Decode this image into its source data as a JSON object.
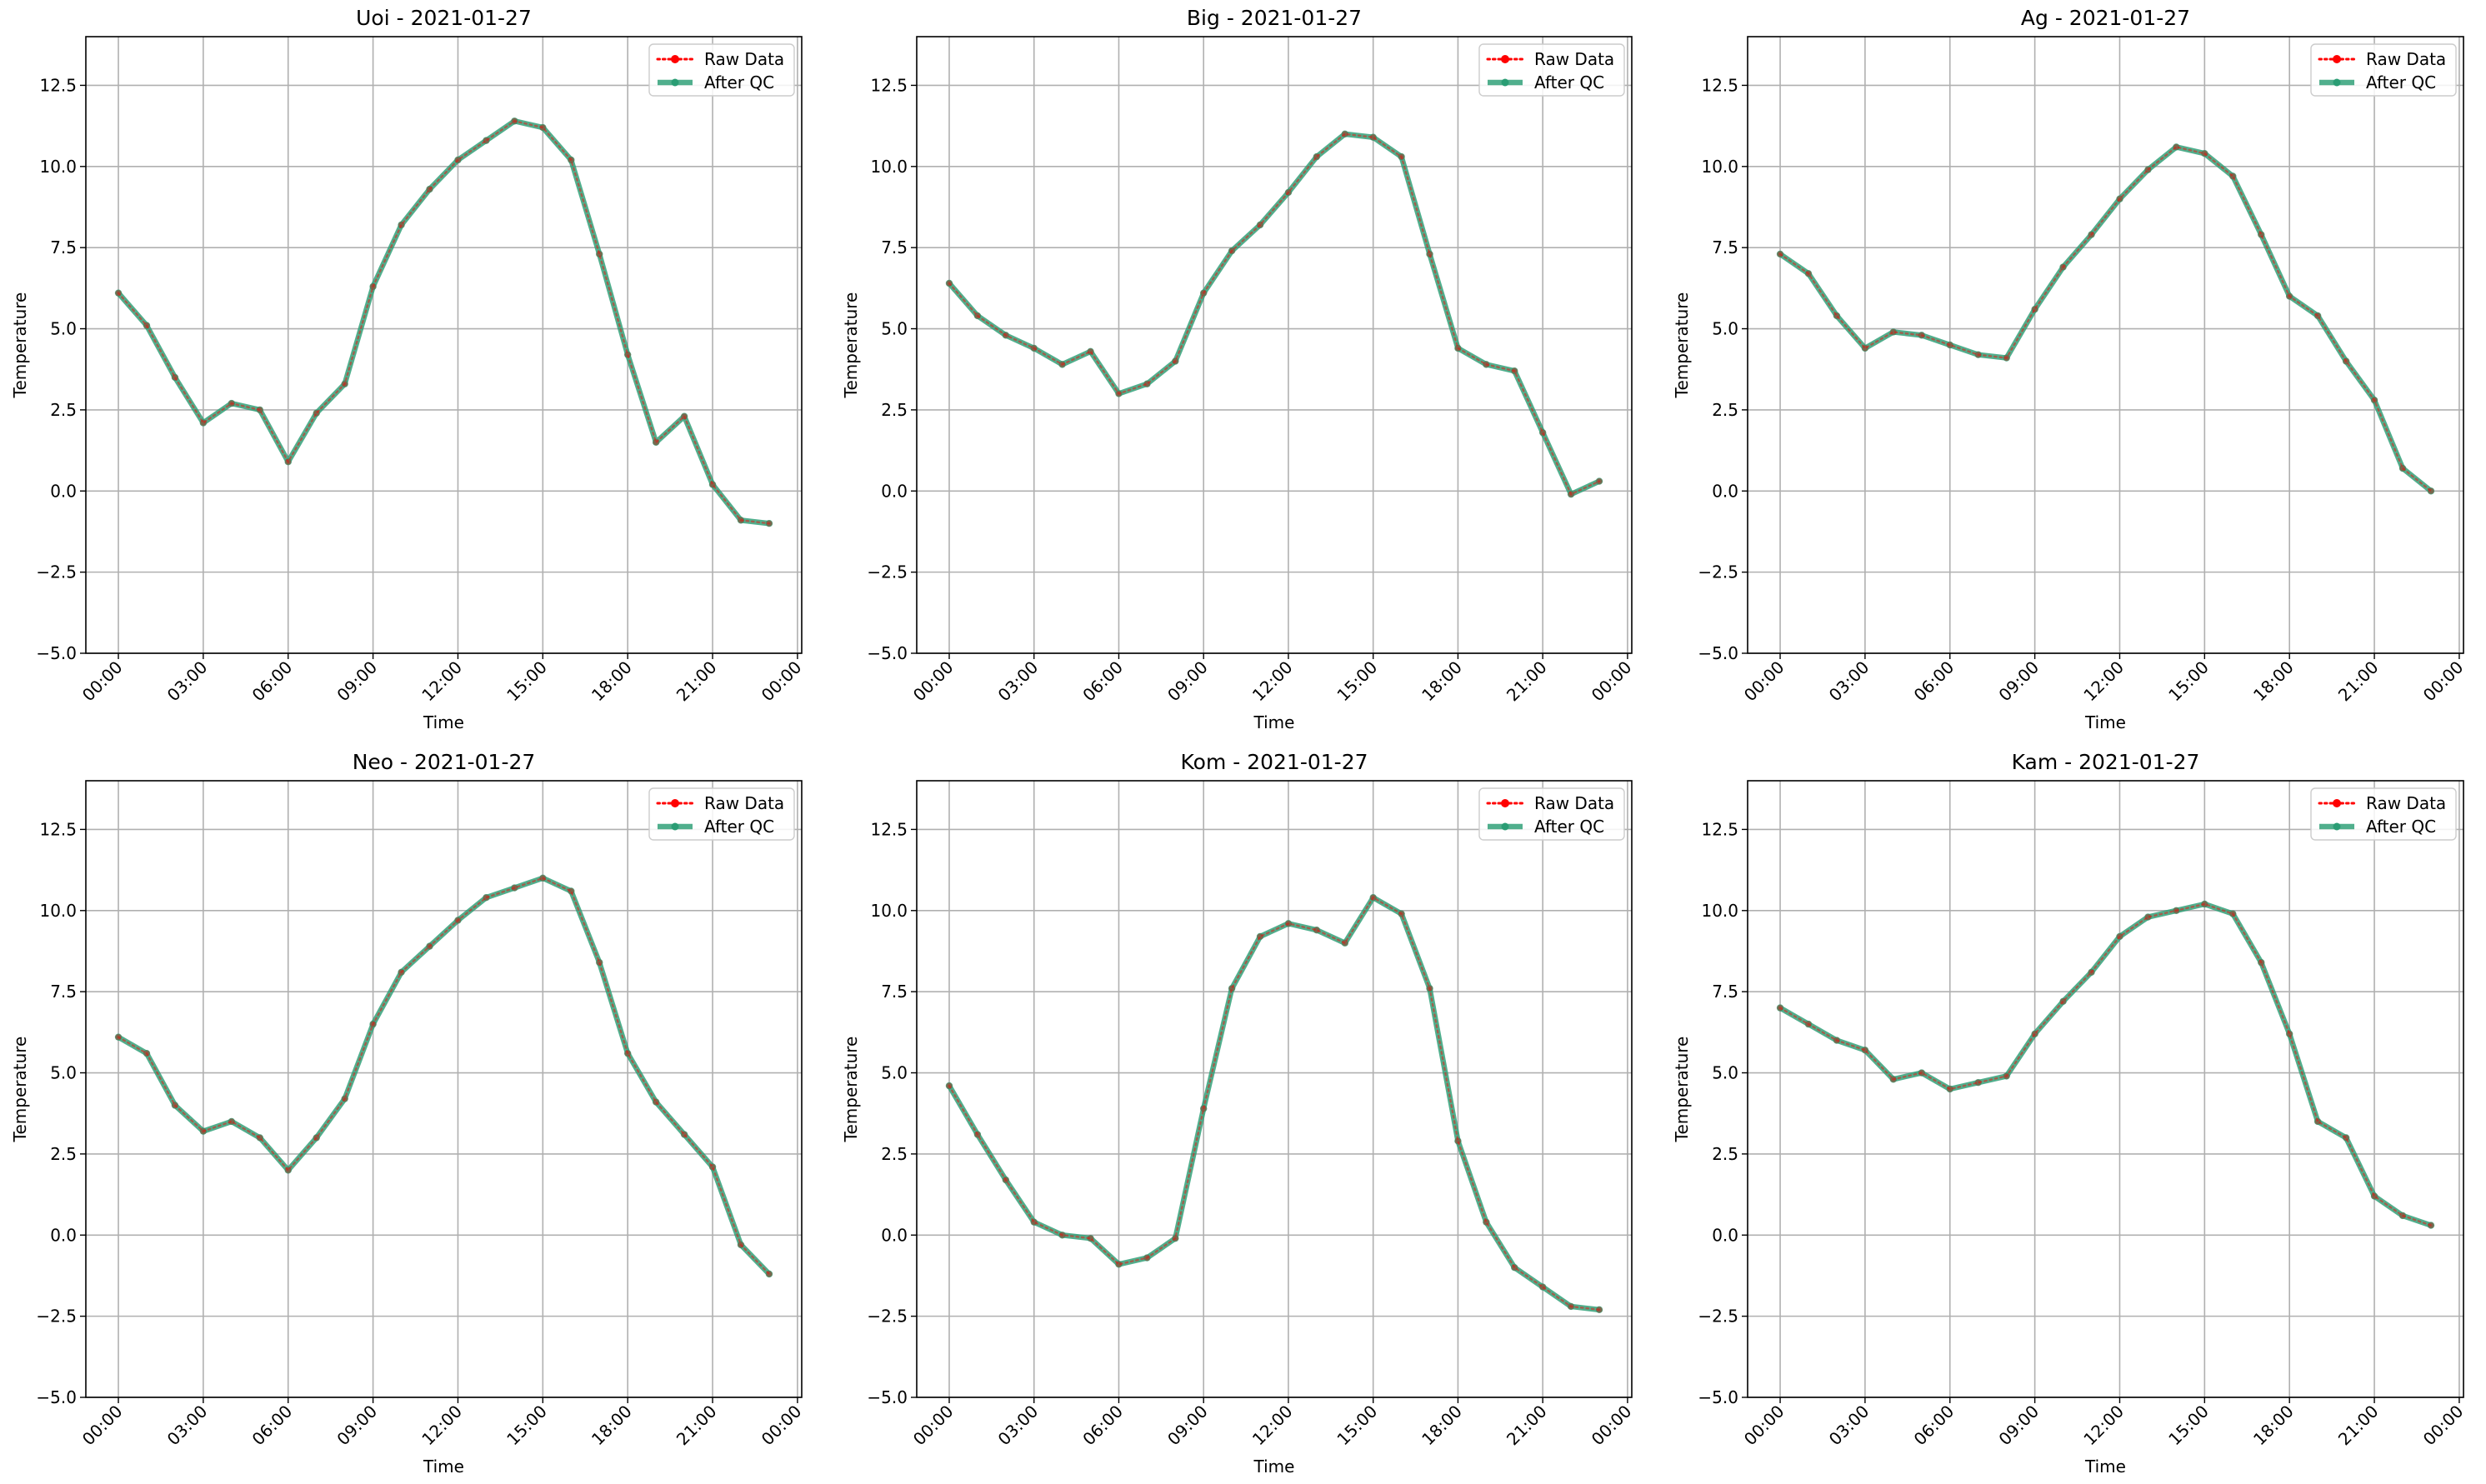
{
  "chart_data": [
    {
      "type": "line",
      "title": "Uoi - 2021-01-27",
      "xlabel": "Time",
      "ylabel": "Temperature",
      "xlim": [
        -1.15,
        24.15
      ],
      "ylim": [
        -5.0,
        14.0
      ],
      "yticks": [
        "−5.0",
        "−2.5",
        "0.0",
        "2.5",
        "5.0",
        "7.5",
        "10.0",
        "12.5"
      ],
      "xticks": [
        "00:00",
        "03:00",
        "06:00",
        "09:00",
        "12:00",
        "15:00",
        "18:00",
        "21:00",
        "00:00"
      ],
      "grid": true,
      "legend_position": "top-right",
      "x": [
        "00:00",
        "01:00",
        "02:00",
        "03:00",
        "04:00",
        "05:00",
        "06:00",
        "07:00",
        "08:00",
        "09:00",
        "10:00",
        "11:00",
        "12:00",
        "13:00",
        "14:00",
        "15:00",
        "16:00",
        "17:00",
        "18:00",
        "19:00",
        "20:00",
        "21:00",
        "22:00",
        "23:00"
      ],
      "series": [
        {
          "name": "Raw Data",
          "color": "#ff0000",
          "values": [
            6.1,
            5.1,
            3.5,
            2.1,
            2.7,
            2.5,
            0.9,
            2.4,
            3.3,
            6.3,
            8.2,
            9.3,
            10.2,
            10.8,
            11.4,
            11.2,
            10.2,
            7.3,
            4.2,
            1.5,
            2.3,
            0.2,
            -0.9,
            -1.0
          ]
        },
        {
          "name": "After QC",
          "color": "#2a9d74",
          "values": [
            6.1,
            5.1,
            3.5,
            2.1,
            2.7,
            2.5,
            0.9,
            2.4,
            3.3,
            6.3,
            8.2,
            9.3,
            10.2,
            10.8,
            11.4,
            11.2,
            10.2,
            7.3,
            4.2,
            1.5,
            2.3,
            0.2,
            -0.9,
            -1.0
          ]
        }
      ]
    },
    {
      "type": "line",
      "title": "Big - 2021-01-27",
      "xlabel": "Time",
      "ylabel": "Temperature",
      "xlim": [
        -1.15,
        24.15
      ],
      "ylim": [
        -5.0,
        14.0
      ],
      "yticks": [
        "−5.0",
        "−2.5",
        "0.0",
        "2.5",
        "5.0",
        "7.5",
        "10.0",
        "12.5"
      ],
      "xticks": [
        "00:00",
        "03:00",
        "06:00",
        "09:00",
        "12:00",
        "15:00",
        "18:00",
        "21:00",
        "00:00"
      ],
      "grid": true,
      "legend_position": "top-right",
      "x": [
        "00:00",
        "01:00",
        "02:00",
        "03:00",
        "04:00",
        "05:00",
        "06:00",
        "07:00",
        "08:00",
        "09:00",
        "10:00",
        "11:00",
        "12:00",
        "13:00",
        "14:00",
        "15:00",
        "16:00",
        "17:00",
        "18:00",
        "19:00",
        "20:00",
        "21:00",
        "22:00",
        "23:00"
      ],
      "series": [
        {
          "name": "Raw Data",
          "color": "#ff0000",
          "values": [
            6.4,
            5.4,
            4.8,
            4.4,
            3.9,
            4.3,
            3.0,
            3.3,
            4.0,
            6.1,
            7.4,
            8.2,
            9.2,
            10.3,
            11.0,
            10.9,
            10.3,
            7.3,
            4.4,
            3.9,
            3.7,
            1.8,
            -0.1,
            0.3
          ]
        },
        {
          "name": "After QC",
          "color": "#2a9d74",
          "values": [
            6.4,
            5.4,
            4.8,
            4.4,
            3.9,
            4.3,
            3.0,
            3.3,
            4.0,
            6.1,
            7.4,
            8.2,
            9.2,
            10.3,
            11.0,
            10.9,
            10.3,
            7.3,
            4.4,
            3.9,
            3.7,
            1.8,
            -0.1,
            0.3
          ]
        }
      ]
    },
    {
      "type": "line",
      "title": "Ag - 2021-01-27",
      "xlabel": "Time",
      "ylabel": "Temperature",
      "xlim": [
        -1.15,
        24.15
      ],
      "ylim": [
        -5.0,
        14.0
      ],
      "yticks": [
        "−5.0",
        "−2.5",
        "0.0",
        "2.5",
        "5.0",
        "7.5",
        "10.0",
        "12.5"
      ],
      "xticks": [
        "00:00",
        "03:00",
        "06:00",
        "09:00",
        "12:00",
        "15:00",
        "18:00",
        "21:00",
        "00:00"
      ],
      "grid": true,
      "legend_position": "top-right",
      "x": [
        "00:00",
        "01:00",
        "02:00",
        "03:00",
        "04:00",
        "05:00",
        "06:00",
        "07:00",
        "08:00",
        "09:00",
        "10:00",
        "11:00",
        "12:00",
        "13:00",
        "14:00",
        "15:00",
        "16:00",
        "17:00",
        "18:00",
        "19:00",
        "20:00",
        "21:00",
        "22:00",
        "23:00"
      ],
      "series": [
        {
          "name": "Raw Data",
          "color": "#ff0000",
          "values": [
            7.3,
            6.7,
            5.4,
            4.4,
            4.9,
            4.8,
            4.5,
            4.2,
            4.1,
            5.6,
            6.9,
            7.9,
            9.0,
            9.9,
            10.6,
            10.4,
            9.7,
            7.9,
            6.0,
            5.4,
            4.0,
            2.8,
            0.7,
            -0.0
          ]
        },
        {
          "name": "After QC",
          "color": "#2a9d74",
          "values": [
            7.3,
            6.7,
            5.4,
            4.4,
            4.9,
            4.8,
            4.5,
            4.2,
            4.1,
            5.6,
            6.9,
            7.9,
            9.0,
            9.9,
            10.6,
            10.4,
            9.7,
            7.9,
            6.0,
            5.4,
            4.0,
            2.8,
            0.7,
            -0.0
          ]
        }
      ]
    },
    {
      "type": "line",
      "title": "Neo - 2021-01-27",
      "xlabel": "Time",
      "ylabel": "Temperature",
      "xlim": [
        -1.15,
        24.15
      ],
      "ylim": [
        -5.0,
        14.0
      ],
      "yticks": [
        "−5.0",
        "−2.5",
        "0.0",
        "2.5",
        "5.0",
        "7.5",
        "10.0",
        "12.5"
      ],
      "xticks": [
        "00:00",
        "03:00",
        "06:00",
        "09:00",
        "12:00",
        "15:00",
        "18:00",
        "21:00",
        "00:00"
      ],
      "grid": true,
      "legend_position": "top-right",
      "x": [
        "00:00",
        "01:00",
        "02:00",
        "03:00",
        "04:00",
        "05:00",
        "06:00",
        "07:00",
        "08:00",
        "09:00",
        "10:00",
        "11:00",
        "12:00",
        "13:00",
        "14:00",
        "15:00",
        "16:00",
        "17:00",
        "18:00",
        "19:00",
        "20:00",
        "21:00",
        "22:00",
        "23:00"
      ],
      "series": [
        {
          "name": "Raw Data",
          "color": "#ff0000",
          "values": [
            6.1,
            5.6,
            4.0,
            3.2,
            3.5,
            3.0,
            2.0,
            3.0,
            4.2,
            6.5,
            8.1,
            8.9,
            9.7,
            10.4,
            10.7,
            11.0,
            10.6,
            8.4,
            5.6,
            4.1,
            3.1,
            2.1,
            -0.3,
            -1.2
          ]
        },
        {
          "name": "After QC",
          "color": "#2a9d74",
          "values": [
            6.1,
            5.6,
            4.0,
            3.2,
            3.5,
            3.0,
            2.0,
            3.0,
            4.2,
            6.5,
            8.1,
            8.9,
            9.7,
            10.4,
            10.7,
            11.0,
            10.6,
            8.4,
            5.6,
            4.1,
            3.1,
            2.1,
            -0.3,
            -1.2
          ]
        }
      ]
    },
    {
      "type": "line",
      "title": "Kom - 2021-01-27",
      "xlabel": "Time",
      "ylabel": "Temperature",
      "xlim": [
        -1.15,
        24.15
      ],
      "ylim": [
        -5.0,
        14.0
      ],
      "yticks": [
        "−5.0",
        "−2.5",
        "0.0",
        "2.5",
        "5.0",
        "7.5",
        "10.0",
        "12.5"
      ],
      "xticks": [
        "00:00",
        "03:00",
        "06:00",
        "09:00",
        "12:00",
        "15:00",
        "18:00",
        "21:00",
        "00:00"
      ],
      "grid": true,
      "legend_position": "top-right",
      "x": [
        "00:00",
        "01:00",
        "02:00",
        "03:00",
        "04:00",
        "05:00",
        "06:00",
        "07:00",
        "08:00",
        "09:00",
        "10:00",
        "11:00",
        "12:00",
        "13:00",
        "14:00",
        "15:00",
        "16:00",
        "17:00",
        "18:00",
        "19:00",
        "20:00",
        "21:00",
        "22:00",
        "23:00"
      ],
      "series": [
        {
          "name": "Raw Data",
          "color": "#ff0000",
          "values": [
            4.6,
            3.1,
            1.7,
            0.4,
            0.0,
            -0.1,
            -0.9,
            -0.7,
            -0.1,
            3.9,
            7.6,
            9.2,
            9.6,
            9.4,
            9.0,
            10.4,
            9.9,
            7.6,
            2.9,
            0.4,
            -1.0,
            -1.6,
            -2.2,
            -2.3
          ]
        },
        {
          "name": "After QC",
          "color": "#2a9d74",
          "values": [
            4.6,
            3.1,
            1.7,
            0.4,
            0.0,
            -0.1,
            -0.9,
            -0.7,
            -0.1,
            3.9,
            7.6,
            9.2,
            9.6,
            9.4,
            9.0,
            10.4,
            9.9,
            7.6,
            2.9,
            0.4,
            -1.0,
            -1.6,
            -2.2,
            -2.3
          ]
        }
      ]
    },
    {
      "type": "line",
      "title": "Kam - 2021-01-27",
      "xlabel": "Time",
      "ylabel": "Temperature",
      "xlim": [
        -1.15,
        24.15
      ],
      "ylim": [
        -5.0,
        14.0
      ],
      "yticks": [
        "−5.0",
        "−2.5",
        "0.0",
        "2.5",
        "5.0",
        "7.5",
        "10.0",
        "12.5"
      ],
      "xticks": [
        "00:00",
        "03:00",
        "06:00",
        "09:00",
        "12:00",
        "15:00",
        "18:00",
        "21:00",
        "00:00"
      ],
      "grid": true,
      "legend_position": "top-right",
      "x": [
        "00:00",
        "01:00",
        "02:00",
        "03:00",
        "04:00",
        "05:00",
        "06:00",
        "07:00",
        "08:00",
        "09:00",
        "10:00",
        "11:00",
        "12:00",
        "13:00",
        "14:00",
        "15:00",
        "16:00",
        "17:00",
        "18:00",
        "19:00",
        "20:00",
        "21:00",
        "22:00",
        "23:00"
      ],
      "series": [
        {
          "name": "Raw Data",
          "color": "#ff0000",
          "values": [
            7.0,
            6.5,
            6.0,
            5.7,
            4.8,
            5.0,
            4.5,
            4.7,
            4.9,
            6.2,
            7.2,
            8.1,
            9.2,
            9.8,
            10.0,
            10.2,
            9.9,
            8.4,
            6.2,
            3.5,
            3.0,
            1.2,
            0.6,
            0.3
          ]
        },
        {
          "name": "After QC",
          "color": "#2a9d74",
          "values": [
            7.0,
            6.5,
            6.0,
            5.7,
            4.8,
            5.0,
            4.5,
            4.7,
            4.9,
            6.2,
            7.2,
            8.1,
            9.2,
            9.8,
            10.0,
            10.2,
            9.9,
            8.4,
            6.2,
            3.5,
            3.0,
            1.2,
            0.6,
            0.3
          ]
        }
      ]
    }
  ]
}
